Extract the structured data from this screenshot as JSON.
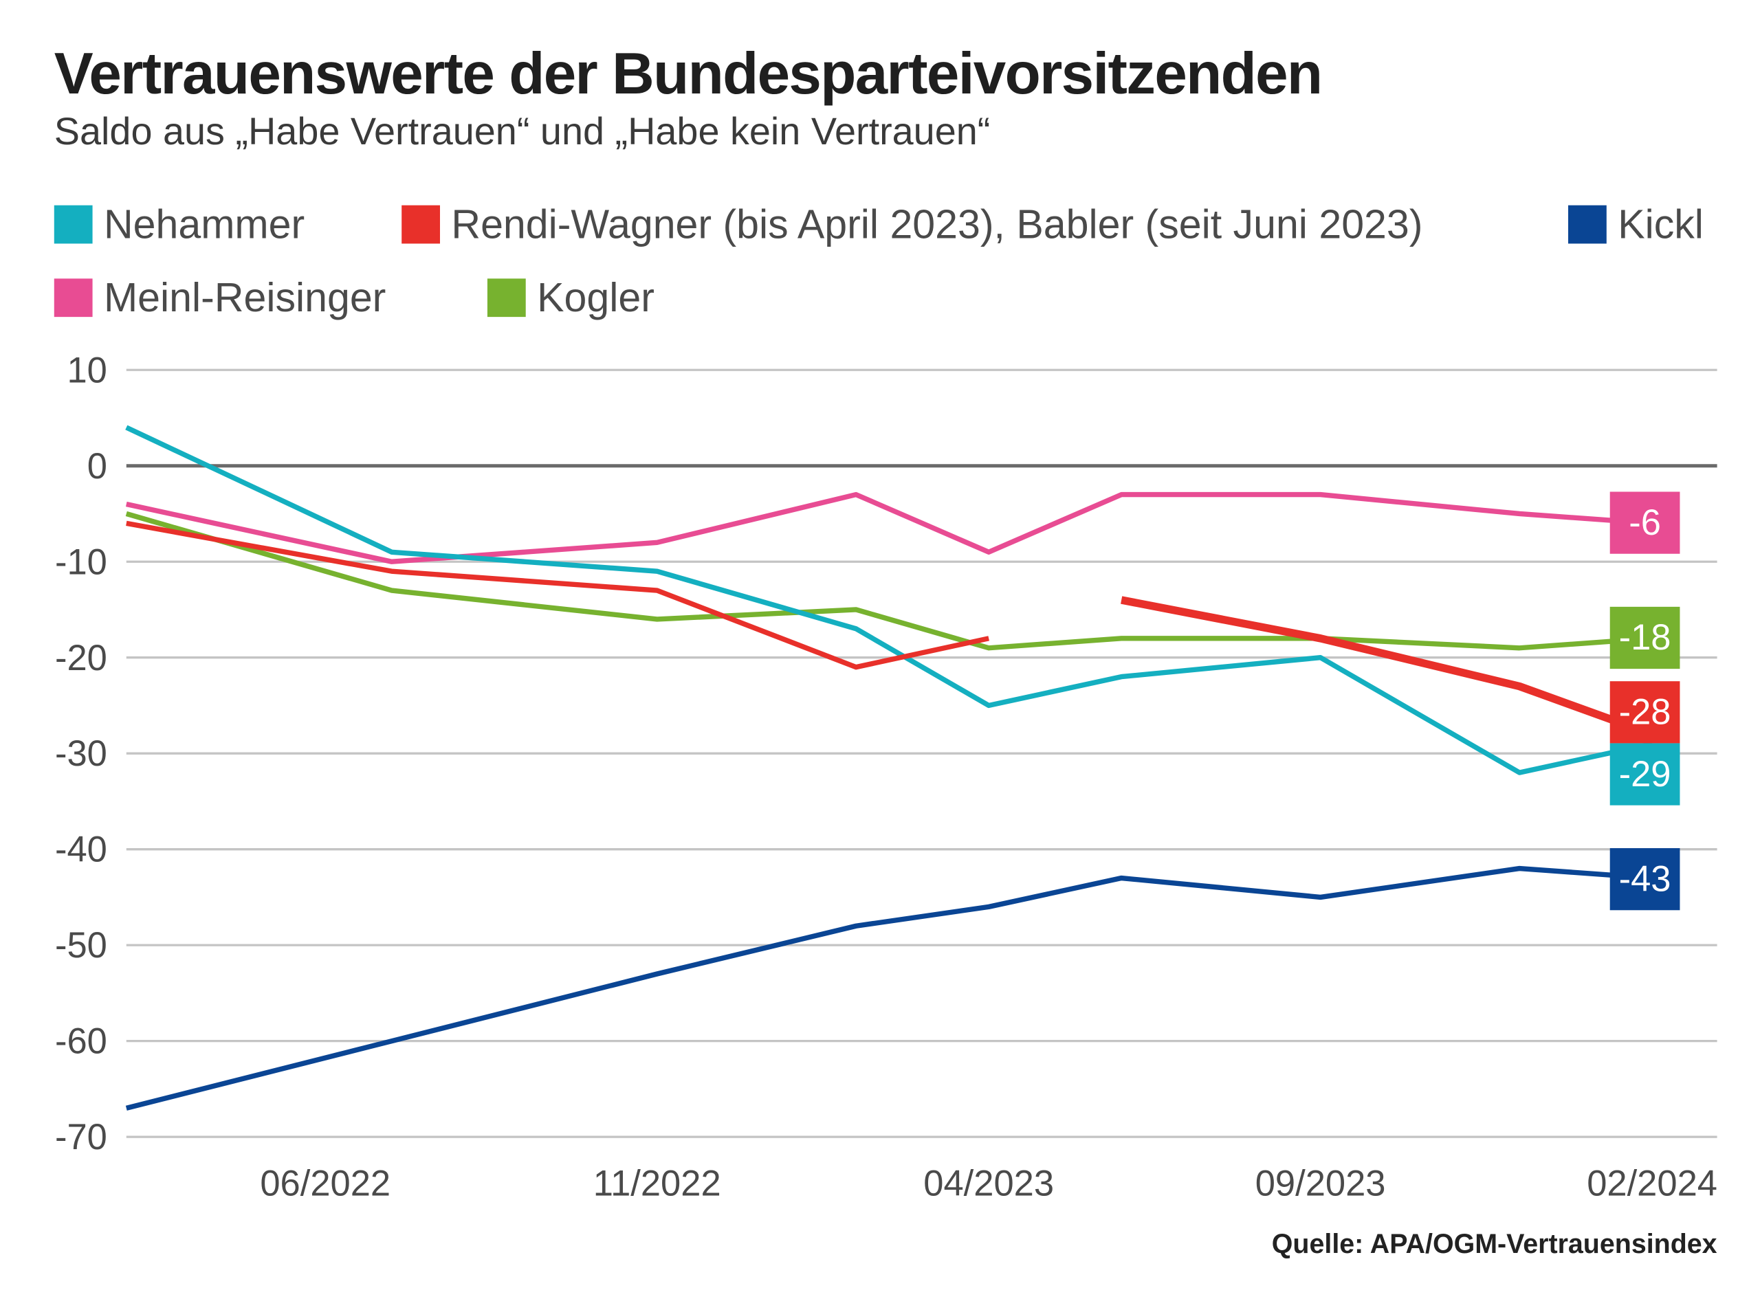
{
  "header": {
    "title": "Vertrauenswerte der Bundesparteivorsitzenden",
    "subtitle": "Saldo aus „Habe Vertrauen“ und „Habe kein Vertrauen“"
  },
  "source": "Quelle: APA/OGM-Vertrauensindex",
  "chart_data": {
    "type": "line",
    "title": "Vertrauenswerte der Bundesparteivorsitzenden",
    "subtitle": "Saldo aus „Habe Vertrauen“ und „Habe kein Vertrauen“",
    "xlabel": "",
    "ylabel": "",
    "x": [
      "03/2022",
      "07/2022",
      "11/2022",
      "02/2023",
      "04/2023",
      "06/2023",
      "09/2023",
      "12/2023",
      "02/2024"
    ],
    "x_month_index": [
      0,
      4,
      8,
      11,
      13,
      15,
      18,
      21,
      23
    ],
    "x_ticks": [
      {
        "label": "06/2022",
        "month_index": 3
      },
      {
        "label": "11/2022",
        "month_index": 8
      },
      {
        "label": "04/2023",
        "month_index": 13
      },
      {
        "label": "09/2023",
        "month_index": 18
      },
      {
        "label": "02/2024",
        "month_index": 23
      }
    ],
    "y_ticks": [
      10,
      0,
      -10,
      -20,
      -30,
      -40,
      -50,
      -60,
      -70
    ],
    "ylim": [
      -70,
      10
    ],
    "grid": true,
    "legend_position": "top",
    "series": [
      {
        "name": "Nehammer",
        "color": "#14AFC0",
        "values": [
          4,
          -9,
          -11,
          -17,
          -25,
          -22,
          -20,
          -32,
          -29
        ],
        "end_label": "-29"
      },
      {
        "name": "Rendi-Wagner (bis April 2023)",
        "color": "#E8302A",
        "values": [
          -6,
          -11,
          -13,
          -21,
          -18,
          null,
          null,
          null,
          null
        ]
      },
      {
        "name": "Babler (seit Juni 2023)",
        "color": "#E8302A",
        "values": [
          null,
          null,
          null,
          null,
          null,
          -14,
          -18,
          -23,
          -28
        ],
        "end_label": "-28"
      },
      {
        "name": "Kickl",
        "color": "#0A4594",
        "values": [
          -67,
          -60,
          -53,
          -48,
          -46,
          -43,
          -45,
          -42,
          -43
        ],
        "end_label": "-43"
      },
      {
        "name": "Meinl-Reisinger",
        "color": "#E84C93",
        "values": [
          -4,
          -10,
          -8,
          -3,
          -9,
          -3,
          -3,
          -5,
          -6
        ],
        "end_label": "-6"
      },
      {
        "name": "Kogler",
        "color": "#77B22F",
        "values": [
          -5,
          -13,
          -16,
          -15,
          -19,
          -18,
          -18,
          -19,
          -18
        ],
        "end_label": "-18"
      }
    ],
    "legend": [
      {
        "label": "Nehammer",
        "color": "#14AFC0"
      },
      {
        "label": "Rendi-Wagner (bis April 2023), Babler (seit Juni 2023)",
        "color": "#E8302A"
      },
      {
        "label": "Kickl",
        "color": "#0A4594"
      },
      {
        "label": "Meinl-Reisinger",
        "color": "#E84C93"
      },
      {
        "label": "Kogler",
        "color": "#77B22F"
      }
    ]
  }
}
